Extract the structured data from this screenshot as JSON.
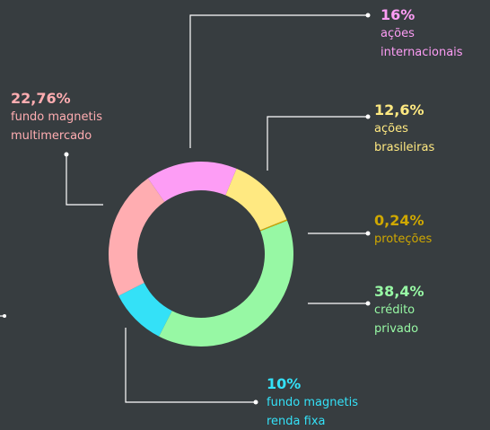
{
  "chart_data": {
    "type": "donut",
    "categories": [
      "ações internacionais",
      "ações brasileiras",
      "proteções",
      "crédito privado",
      "fundo magnetis renda fixa",
      "fundo magnetis multimercado"
    ],
    "values": [
      16,
      12.6,
      0.24,
      38.4,
      10,
      22.76
    ],
    "value_labels": [
      "16%",
      "12,6%",
      "0,24%",
      "38,4%",
      "10%",
      "22,76%"
    ],
    "colors": [
      "#fd9df5",
      "#ffe981",
      "#cfa800",
      "#97f8a4",
      "#34e1f7",
      "#ffadb1"
    ]
  }
}
